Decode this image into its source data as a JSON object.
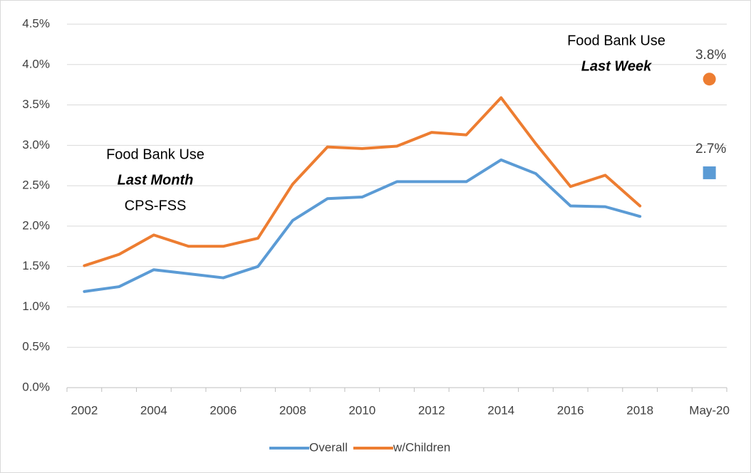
{
  "chart_data": {
    "type": "line",
    "categories": [
      "2002",
      null,
      "2004",
      null,
      "2006",
      null,
      "2008",
      null,
      "2010",
      null,
      "2012",
      null,
      "2014",
      null,
      "2016",
      null,
      "2018",
      null,
      "May-20"
    ],
    "series": [
      {
        "name": "Overall",
        "color": "#5b9bd5",
        "marker": "square",
        "values": [
          1.19,
          1.25,
          1.46,
          1.41,
          1.36,
          1.5,
          2.07,
          2.34,
          2.36,
          2.55,
          2.55,
          2.55,
          2.82,
          2.65,
          2.25,
          2.24,
          2.12,
          null,
          2.66
        ],
        "value_labels": [
          null,
          null,
          null,
          null,
          null,
          null,
          null,
          null,
          null,
          null,
          null,
          null,
          null,
          null,
          null,
          null,
          null,
          null,
          "2.7%"
        ]
      },
      {
        "name": "w/Children",
        "color": "#ed7d31",
        "marker": "circle",
        "values": [
          1.51,
          1.65,
          1.89,
          1.75,
          1.75,
          1.85,
          2.52,
          2.98,
          2.96,
          2.99,
          3.16,
          3.13,
          3.59,
          3.02,
          2.49,
          2.63,
          2.25,
          null,
          3.82
        ],
        "value_labels": [
          null,
          null,
          null,
          null,
          null,
          null,
          null,
          null,
          null,
          null,
          null,
          null,
          null,
          null,
          null,
          null,
          null,
          null,
          "3.8%"
        ]
      }
    ],
    "ylim": [
      0,
      4.5
    ],
    "yticks": [
      {
        "value": 0,
        "label": "0.0%"
      },
      {
        "value": 0.5,
        "label": "0.5%"
      },
      {
        "value": 1,
        "label": "1.0%"
      },
      {
        "value": 1.5,
        "label": "1.5%"
      },
      {
        "value": 2,
        "label": "2.0%"
      },
      {
        "value": 2.5,
        "label": "2.5%"
      },
      {
        "value": 3,
        "label": "3.0%"
      },
      {
        "value": 3.5,
        "label": "3.5%"
      },
      {
        "value": 4,
        "label": "4.0%"
      },
      {
        "value": 4.5,
        "label": "4.5%"
      }
    ],
    "grid": true,
    "legend": "bottom",
    "annotations": [
      {
        "lines": [
          {
            "text": "Food Bank Use",
            "style": "normal"
          },
          {
            "text": "Last Month",
            "style": "bold-italic"
          },
          {
            "text": "CPS-FSS",
            "style": "normal"
          }
        ]
      },
      {
        "lines": [
          {
            "text": "Food Bank Use",
            "style": "normal"
          },
          {
            "text": "Last Week",
            "style": "bold-italic"
          }
        ]
      }
    ]
  }
}
